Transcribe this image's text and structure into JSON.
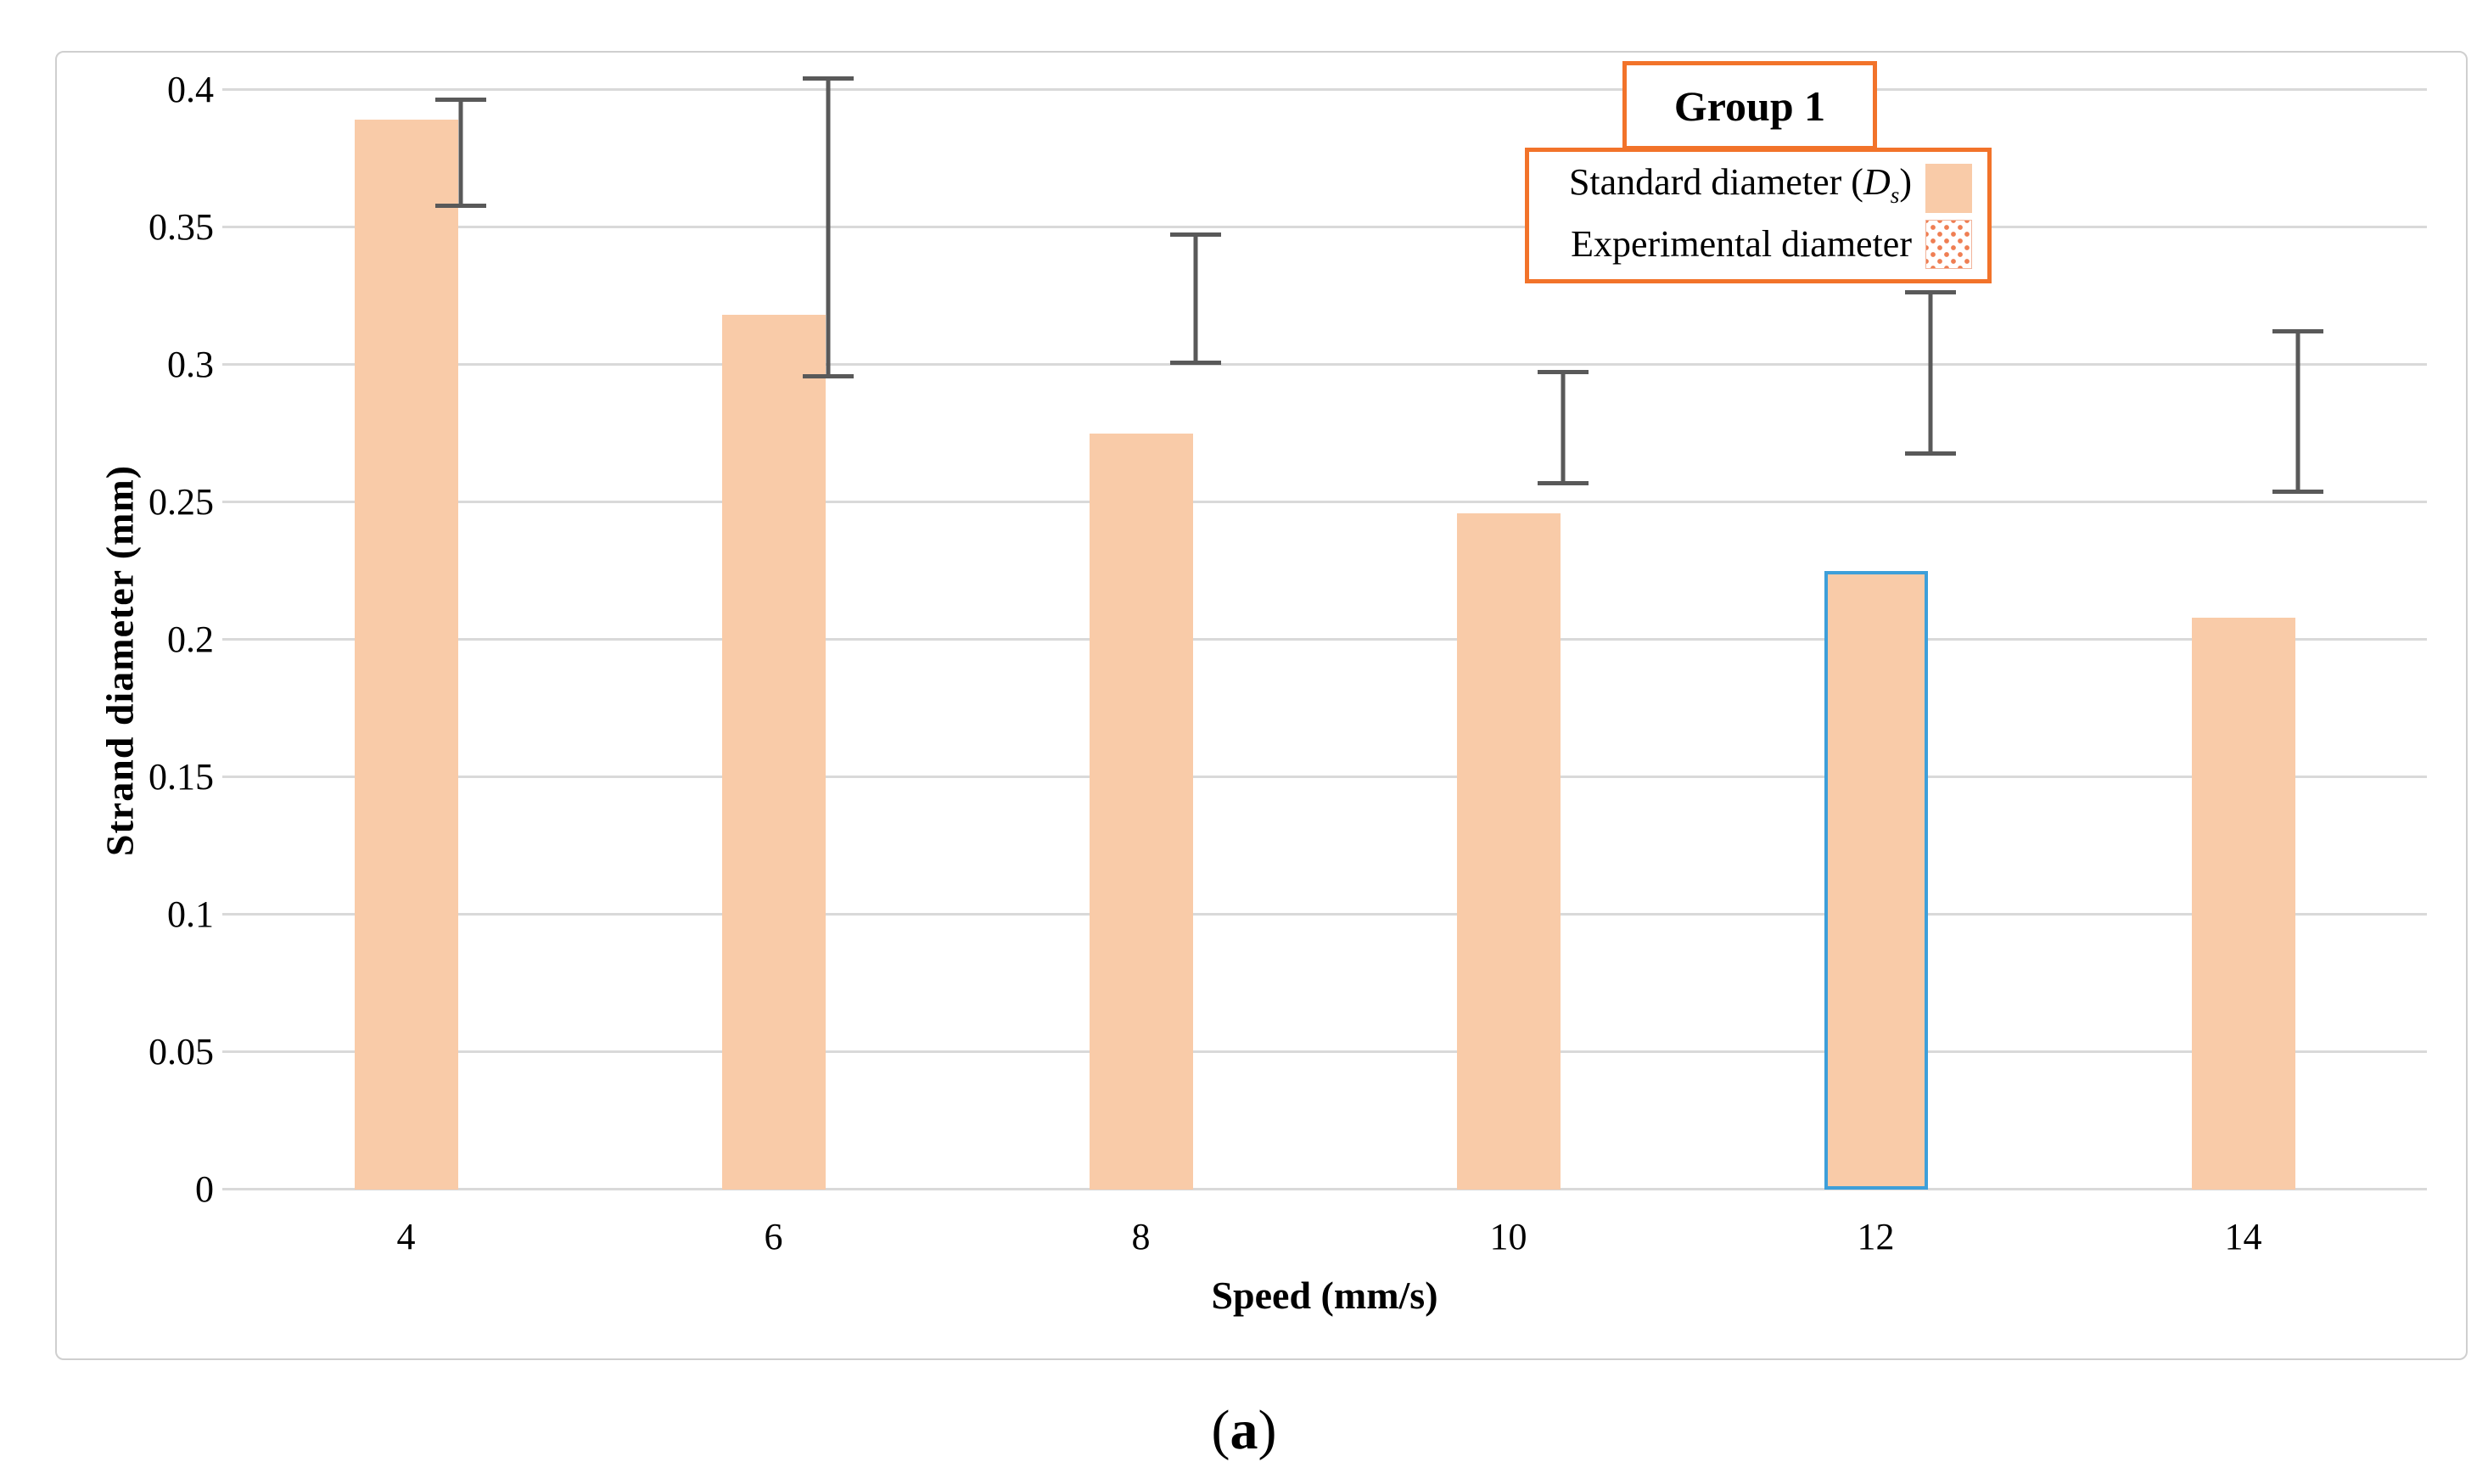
{
  "figure": {
    "caption_open": "(",
    "caption_letter": "a",
    "caption_close": ")"
  },
  "chart_data": {
    "type": "bar",
    "title": "",
    "legend_title": "Group 1",
    "xlabel": "Speed (mm/s)",
    "ylabel": "Strand diameter (mm)",
    "categories": [
      "4",
      "6",
      "8",
      "10",
      "12",
      "14"
    ],
    "ylim": [
      0,
      0.4135
    ],
    "y_ticks": [
      {
        "value": 0,
        "label": "0"
      },
      {
        "value": 0.05,
        "label": "0.05"
      },
      {
        "value": 0.1,
        "label": "0.1"
      },
      {
        "value": 0.15,
        "label": "0.15"
      },
      {
        "value": 0.2,
        "label": "0.2"
      },
      {
        "value": 0.25,
        "label": "0.25"
      },
      {
        "value": 0.3,
        "label": "0.3"
      },
      {
        "value": 0.35,
        "label": "0.35"
      },
      {
        "value": 0.4,
        "label": "0.4"
      }
    ],
    "grid": true,
    "legend_position": "top-right",
    "series": [
      {
        "name": "Standard diameter (Ds)",
        "name_parts": {
          "prefix": "Standard diameter (",
          "symbol": "D",
          "subscript": "s",
          "suffix": ")"
        },
        "style": "solid",
        "fill": "#F9CBA8",
        "values": [
          0.389,
          0.318,
          0.275,
          0.246,
          0.225,
          0.208
        ],
        "highlight_index": 4,
        "highlight_border": "#3E9FD9"
      },
      {
        "name": "Experimental diameter",
        "style": "pattern-dots",
        "dot_color": "#EF7E53",
        "border": "#1A1A1A",
        "values": [
          0.377,
          0.35,
          0.324,
          0.277,
          0.297,
          0.283
        ],
        "errors": [
          0.02,
          0.055,
          0.024,
          0.021,
          0.03,
          0.03
        ],
        "error_color": "#595959"
      }
    ],
    "colors": {
      "gridline": "#D9D9D9",
      "frame": "#CFCFCF",
      "legend_border": "#F2732A",
      "text": "#000000"
    }
  }
}
